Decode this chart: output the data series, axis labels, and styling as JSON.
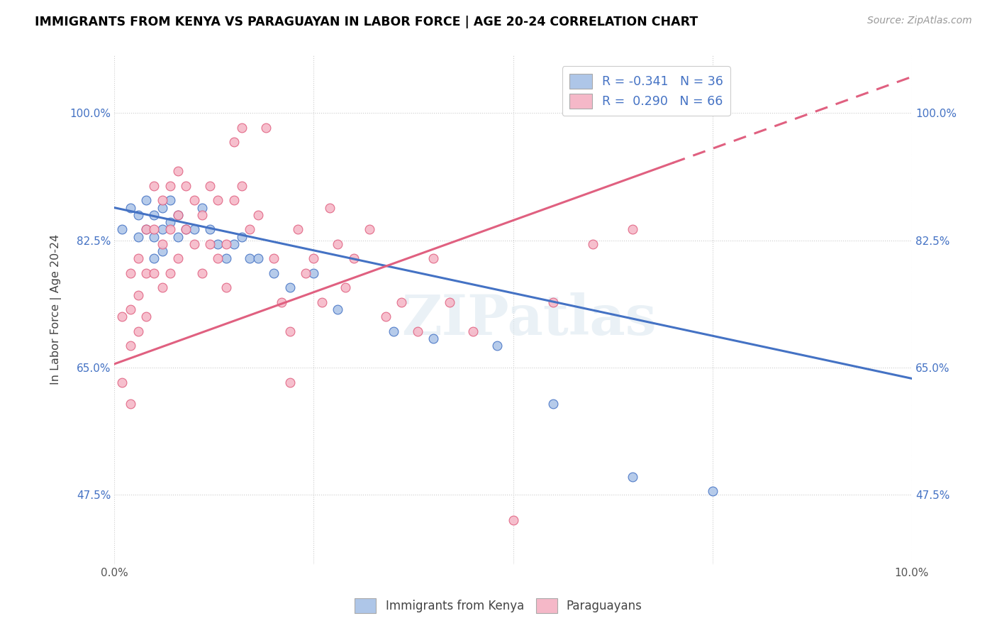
{
  "title": "IMMIGRANTS FROM KENYA VS PARAGUAYAN IN LABOR FORCE | AGE 20-24 CORRELATION CHART",
  "source": "Source: ZipAtlas.com",
  "ylabel": "In Labor Force | Age 20-24",
  "xlim": [
    0.0,
    0.1
  ],
  "ylim": [
    0.38,
    1.08
  ],
  "yticks": [
    0.475,
    0.65,
    0.825,
    1.0
  ],
  "ytick_labels": [
    "47.5%",
    "65.0%",
    "82.5%",
    "100.0%"
  ],
  "xticks": [
    0.0,
    0.025,
    0.05,
    0.075,
    0.1
  ],
  "xtick_labels": [
    "0.0%",
    "",
    "",
    "",
    "10.0%"
  ],
  "legend_r_kenya": "-0.341",
  "legend_n_kenya": "36",
  "legend_r_para": "0.290",
  "legend_n_para": "66",
  "color_kenya": "#aec6e8",
  "color_para": "#f5b8c8",
  "line_color_kenya": "#4472c4",
  "line_color_para": "#e06080",
  "watermark": "ZIPatlas",
  "kenya_x": [
    0.001,
    0.002,
    0.003,
    0.003,
    0.004,
    0.004,
    0.005,
    0.005,
    0.005,
    0.006,
    0.006,
    0.006,
    0.007,
    0.007,
    0.008,
    0.008,
    0.009,
    0.01,
    0.011,
    0.012,
    0.013,
    0.014,
    0.015,
    0.016,
    0.017,
    0.018,
    0.02,
    0.022,
    0.025,
    0.028,
    0.035,
    0.04,
    0.048,
    0.055,
    0.065,
    0.075
  ],
  "kenya_y": [
    0.84,
    0.87,
    0.86,
    0.83,
    0.88,
    0.84,
    0.86,
    0.83,
    0.8,
    0.87,
    0.84,
    0.81,
    0.88,
    0.85,
    0.86,
    0.83,
    0.84,
    0.84,
    0.87,
    0.84,
    0.82,
    0.8,
    0.82,
    0.83,
    0.8,
    0.8,
    0.78,
    0.76,
    0.78,
    0.73,
    0.7,
    0.69,
    0.68,
    0.6,
    0.5,
    0.48
  ],
  "para_x": [
    0.001,
    0.001,
    0.002,
    0.002,
    0.002,
    0.002,
    0.003,
    0.003,
    0.003,
    0.004,
    0.004,
    0.004,
    0.005,
    0.005,
    0.005,
    0.006,
    0.006,
    0.006,
    0.007,
    0.007,
    0.007,
    0.008,
    0.008,
    0.008,
    0.009,
    0.009,
    0.01,
    0.01,
    0.011,
    0.011,
    0.012,
    0.012,
    0.013,
    0.013,
    0.014,
    0.014,
    0.015,
    0.015,
    0.016,
    0.016,
    0.017,
    0.018,
    0.019,
    0.02,
    0.021,
    0.022,
    0.022,
    0.023,
    0.024,
    0.025,
    0.026,
    0.027,
    0.028,
    0.029,
    0.03,
    0.032,
    0.034,
    0.036,
    0.038,
    0.04,
    0.042,
    0.045,
    0.05,
    0.055,
    0.06,
    0.065
  ],
  "para_y": [
    0.72,
    0.63,
    0.78,
    0.73,
    0.68,
    0.6,
    0.8,
    0.75,
    0.7,
    0.84,
    0.78,
    0.72,
    0.9,
    0.84,
    0.78,
    0.88,
    0.82,
    0.76,
    0.9,
    0.84,
    0.78,
    0.92,
    0.86,
    0.8,
    0.9,
    0.84,
    0.88,
    0.82,
    0.86,
    0.78,
    0.9,
    0.82,
    0.88,
    0.8,
    0.82,
    0.76,
    0.96,
    0.88,
    0.98,
    0.9,
    0.84,
    0.86,
    0.98,
    0.8,
    0.74,
    0.7,
    0.63,
    0.84,
    0.78,
    0.8,
    0.74,
    0.87,
    0.82,
    0.76,
    0.8,
    0.84,
    0.72,
    0.74,
    0.7,
    0.8,
    0.74,
    0.7,
    0.44,
    0.74,
    0.82,
    0.84
  ],
  "kenya_line_x0": 0.0,
  "kenya_line_x1": 0.1,
  "kenya_line_y0": 0.87,
  "kenya_line_y1": 0.635,
  "para_line_x0": 0.0,
  "para_line_x1": 0.1,
  "para_line_y0": 0.655,
  "para_line_y1": 1.05
}
